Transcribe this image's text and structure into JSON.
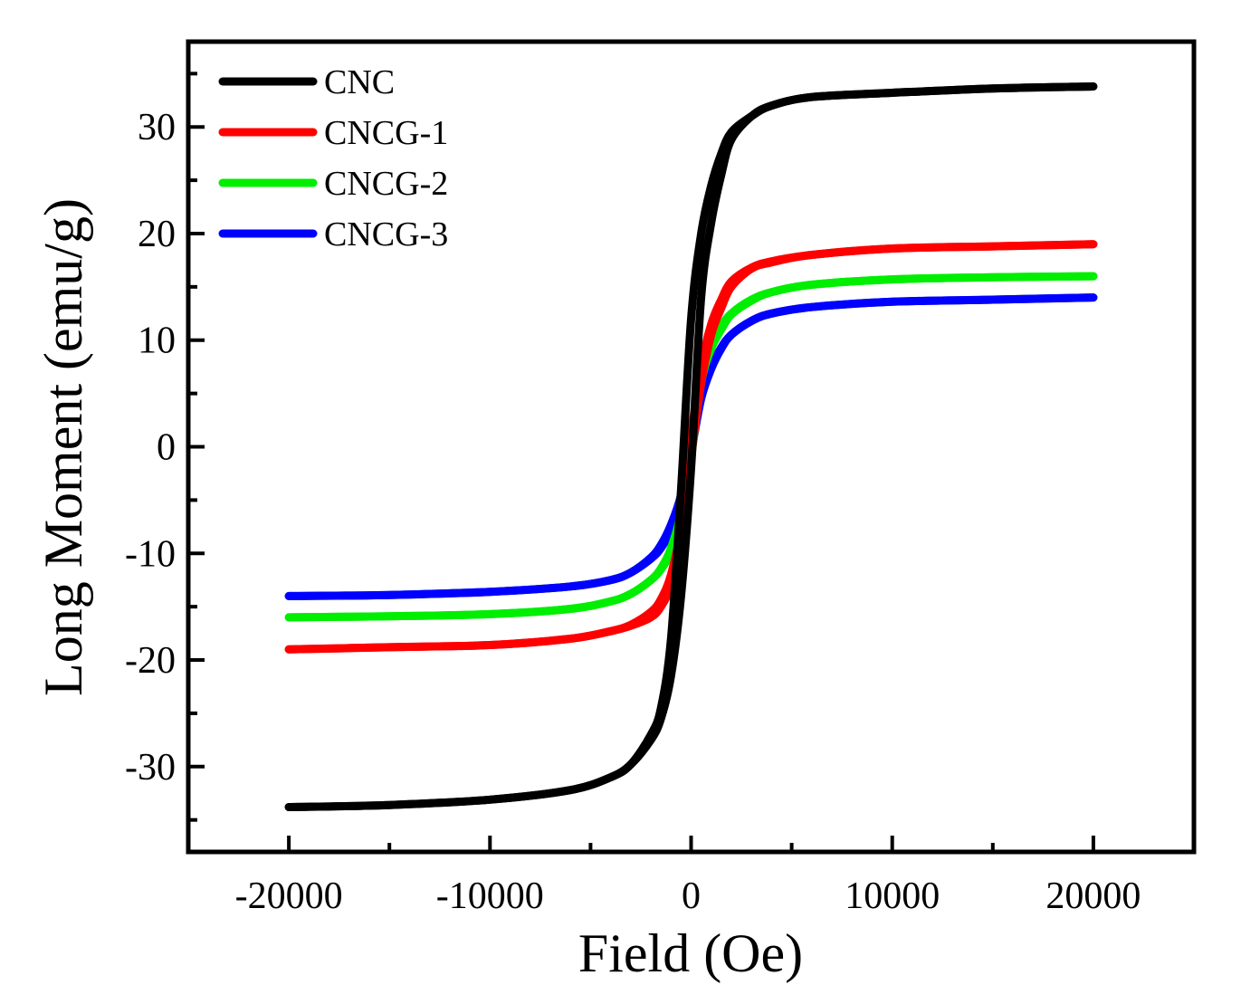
{
  "chart_data": {
    "type": "line",
    "title": "",
    "xlabel": "Field (Oe)",
    "ylabel": "Long Moment (emu/g)",
    "xlim": [
      -25000,
      25000
    ],
    "ylim": [
      -38,
      38
    ],
    "x_ticks": [
      -20000,
      -10000,
      0,
      10000,
      20000
    ],
    "x_tick_labels": [
      "-20000",
      "-10000",
      "0",
      "10000",
      "20000"
    ],
    "y_ticks": [
      -30,
      -20,
      -10,
      0,
      10,
      20,
      30
    ],
    "y_tick_labels": [
      "-30",
      "-20",
      "-10",
      "0",
      "10",
      "20",
      "30"
    ],
    "grid": false,
    "legend_position": "top-left",
    "series": [
      {
        "name": "CNC",
        "color": "#000000",
        "x": [
          -20000,
          -15000,
          -10000,
          -6000,
          -4000,
          -3000,
          -2000,
          -1500,
          -1000,
          -500,
          0,
          500,
          1000,
          1500,
          2000,
          3000,
          4000,
          6000,
          10000,
          15000,
          20000
        ],
        "y_branch_a": [
          -33.8,
          -33.6,
          -33.1,
          -32.2,
          -31.0,
          -29.8,
          -27.0,
          -24.5,
          -18.0,
          -4.0,
          12.0,
          20.0,
          24.5,
          27.5,
          29.5,
          31.0,
          32.0,
          32.8,
          33.2,
          33.6,
          33.8
        ],
        "y_branch_b": [
          -33.8,
          -33.6,
          -33.1,
          -32.2,
          -31.0,
          -29.8,
          -27.5,
          -25.5,
          -21.5,
          -14.0,
          -2.0,
          14.0,
          21.0,
          25.5,
          28.8,
          31.0,
          32.0,
          32.8,
          33.2,
          33.6,
          33.8
        ]
      },
      {
        "name": "CNCG-1",
        "color": "#ff0000",
        "x": [
          -20000,
          -15000,
          -10000,
          -6000,
          -4000,
          -3000,
          -2000,
          -1500,
          -1000,
          -500,
          0,
          500,
          1000,
          1500,
          2000,
          3000,
          4000,
          6000,
          10000,
          15000,
          20000
        ],
        "y_branch_a": [
          -19.0,
          -18.8,
          -18.6,
          -18.0,
          -17.3,
          -16.7,
          -15.5,
          -14.3,
          -12.0,
          -7.5,
          1.0,
          7.5,
          11.5,
          13.8,
          15.5,
          16.8,
          17.4,
          18.0,
          18.6,
          18.8,
          19.0
        ],
        "y_branch_b": [
          -19.0,
          -18.8,
          -18.6,
          -18.0,
          -17.3,
          -16.8,
          -16.0,
          -15.0,
          -13.0,
          -9.0,
          -1.0,
          6.0,
          10.5,
          13.0,
          15.0,
          16.7,
          17.3,
          18.0,
          18.6,
          18.8,
          19.0
        ]
      },
      {
        "name": "CNCG-2",
        "color": "#00ee00",
        "x": [
          -20000,
          -15000,
          -10000,
          -6000,
          -4000,
          -3000,
          -2000,
          -1500,
          -1000,
          -500,
          0,
          500,
          1000,
          1500,
          2000,
          3000,
          4000,
          6000,
          10000,
          15000,
          20000
        ],
        "y_branch_a": [
          -16.0,
          -15.9,
          -15.7,
          -15.2,
          -14.5,
          -13.8,
          -12.5,
          -11.4,
          -9.5,
          -6.0,
          1.0,
          6.5,
          9.5,
          11.3,
          12.5,
          13.8,
          14.5,
          15.2,
          15.7,
          15.9,
          16.0
        ],
        "y_branch_b": [
          -16.0,
          -15.9,
          -15.7,
          -15.2,
          -14.5,
          -13.8,
          -12.5,
          -11.5,
          -9.8,
          -6.5,
          -1.0,
          6.0,
          9.2,
          11.0,
          12.4,
          13.7,
          14.5,
          15.2,
          15.7,
          15.9,
          16.0
        ]
      },
      {
        "name": "CNCG-3",
        "color": "#0000ff",
        "x": [
          -20000,
          -15000,
          -10000,
          -6000,
          -4000,
          -3000,
          -2000,
          -1500,
          -1000,
          -500,
          0,
          500,
          1000,
          1500,
          2000,
          3000,
          4000,
          6000,
          10000,
          15000,
          20000
        ],
        "y_branch_a": [
          -14.0,
          -13.9,
          -13.6,
          -13.1,
          -12.5,
          -11.8,
          -10.4,
          -9.2,
          -7.3,
          -4.5,
          0.5,
          5.0,
          7.5,
          9.3,
          10.5,
          11.8,
          12.5,
          13.1,
          13.6,
          13.8,
          14.0
        ],
        "y_branch_b": [
          -14.0,
          -13.9,
          -13.6,
          -13.1,
          -12.5,
          -11.8,
          -10.5,
          -9.5,
          -7.8,
          -5.0,
          -0.5,
          4.5,
          7.3,
          9.2,
          10.5,
          11.8,
          12.5,
          13.1,
          13.6,
          13.8,
          14.0
        ]
      }
    ]
  }
}
